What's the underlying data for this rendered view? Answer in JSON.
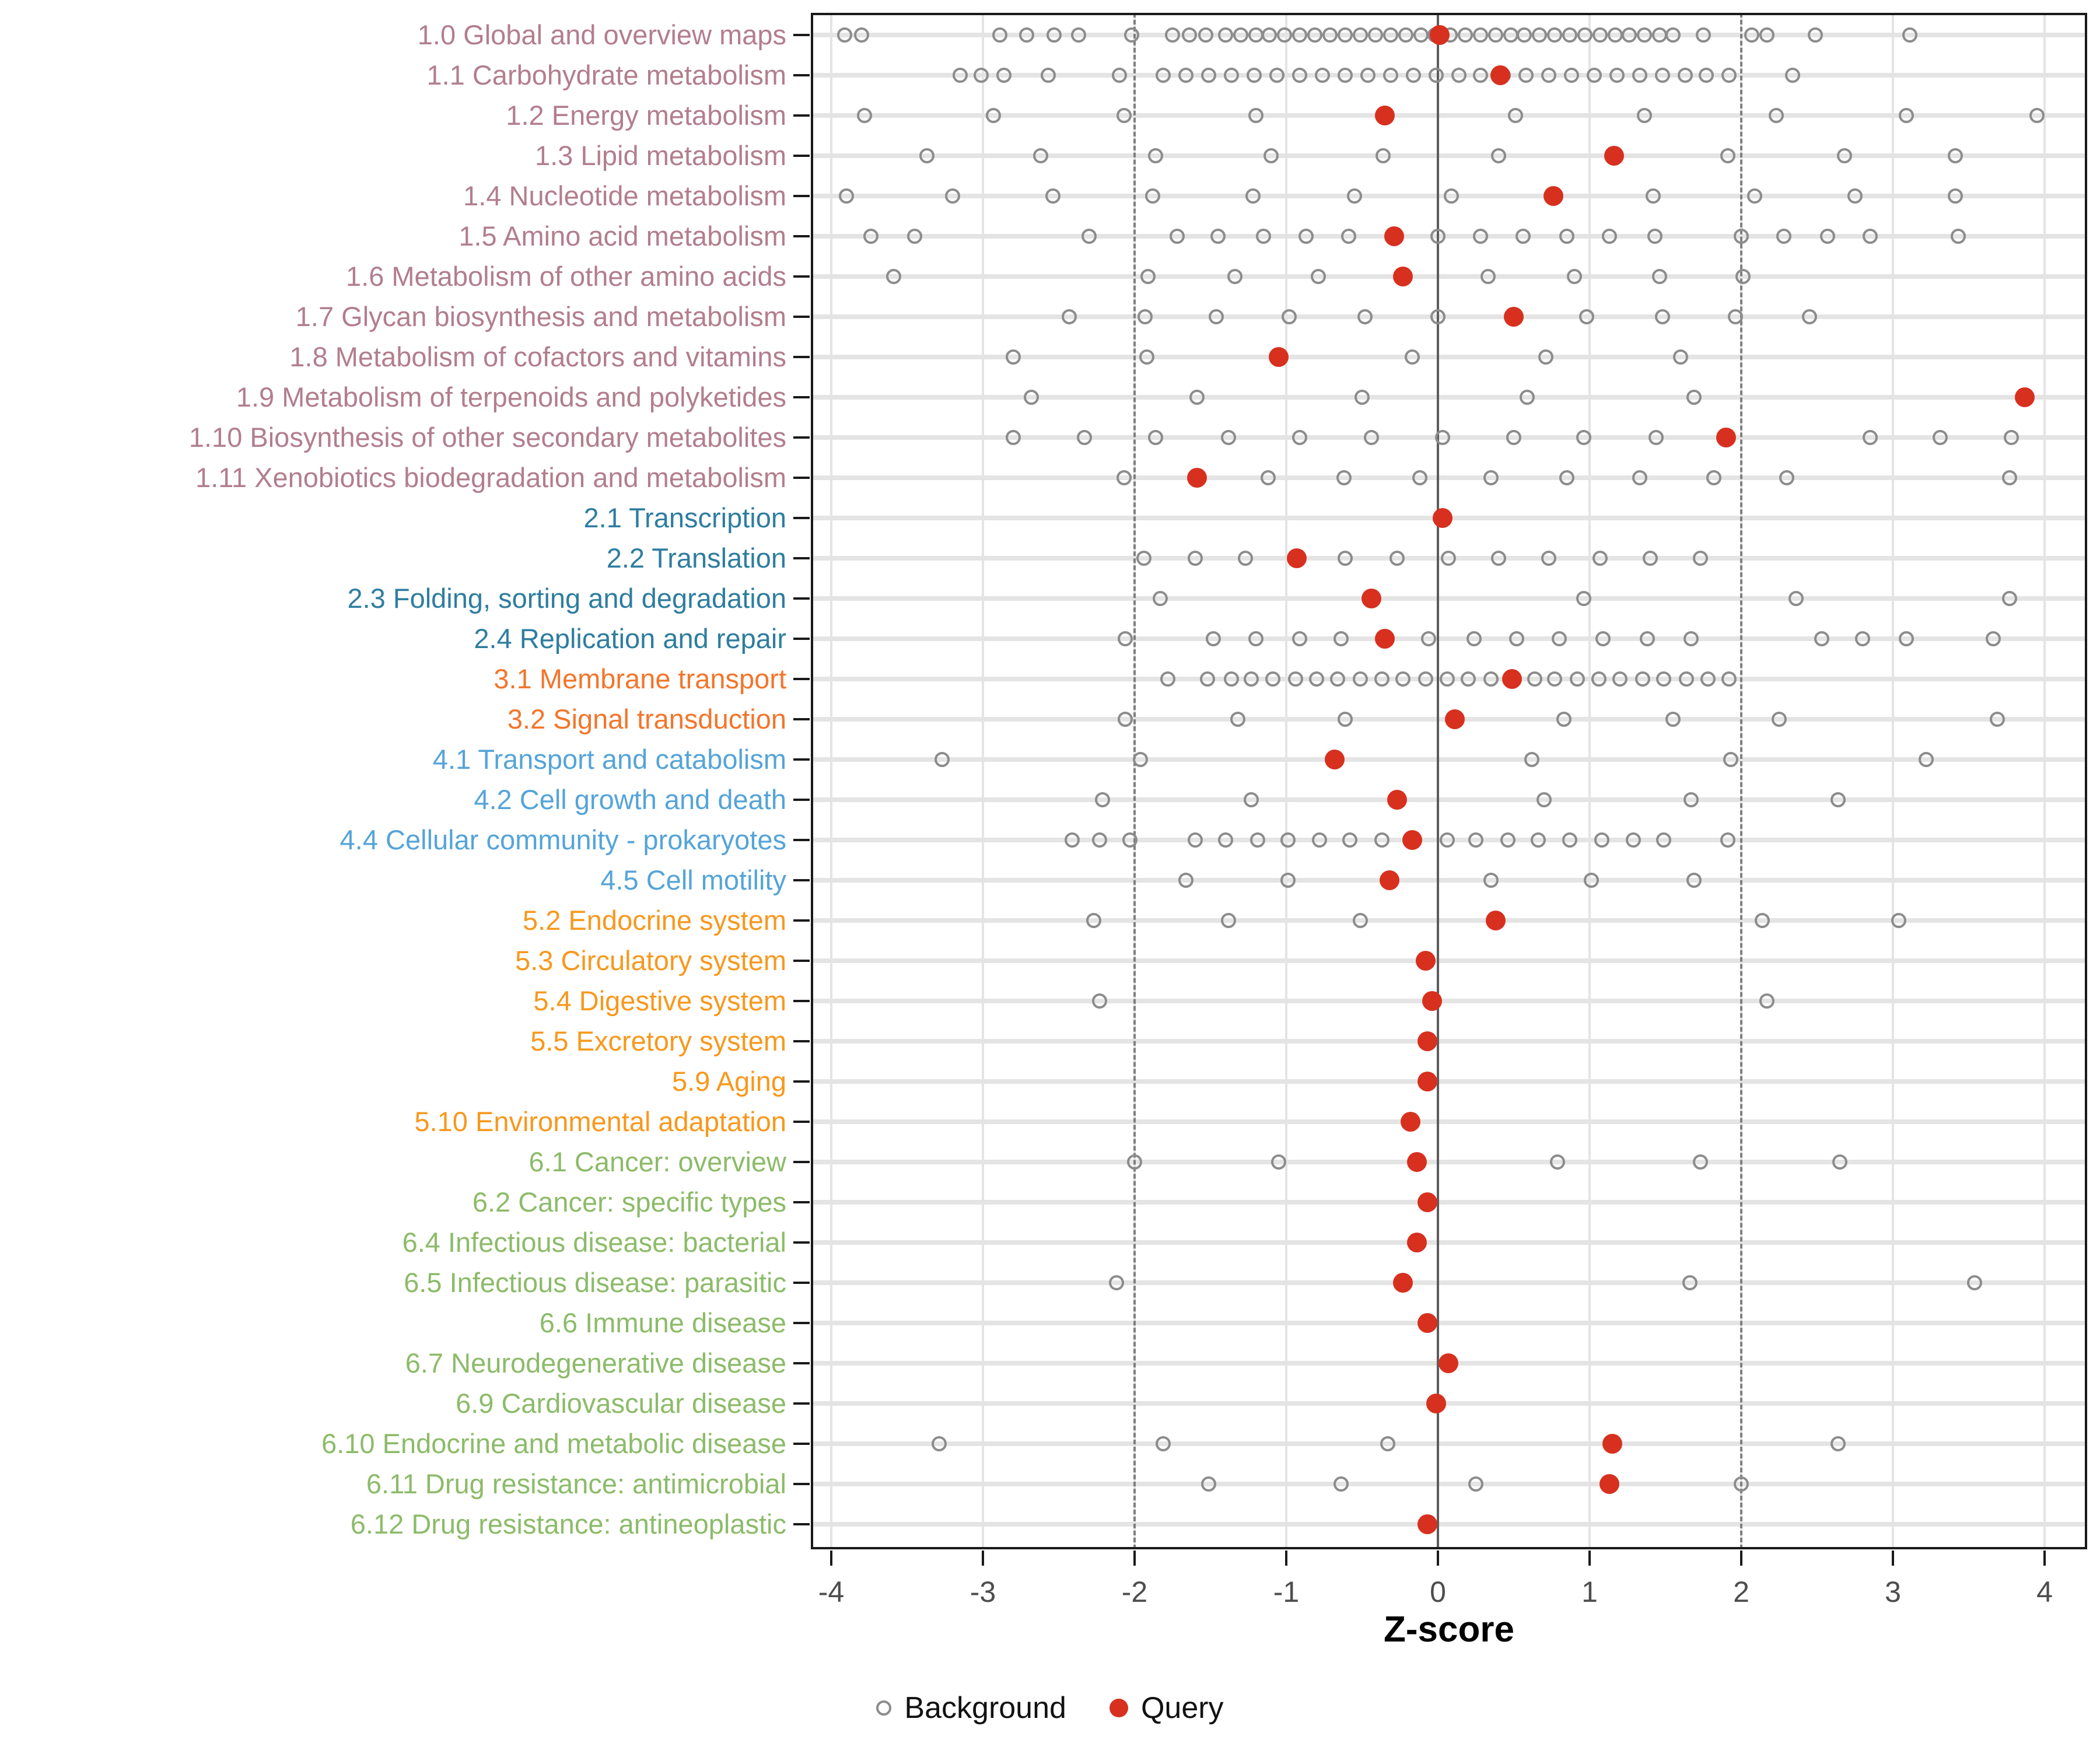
{
  "axis": {
    "xlabel": "Z-score"
  },
  "legend": {
    "background_label": "Background",
    "query_label": "Query"
  },
  "colors": {
    "query_marker": "#d7301f",
    "background_marker": "#8c8c8c",
    "gridline": "#e4e4e4",
    "dashed_reference": "#7f7f7f",
    "zero_line": "#5c5c5c",
    "panel_border": "#1a1a1a",
    "tick_label": "#4d4d4d"
  },
  "chart_data": {
    "type": "scatter",
    "title": "",
    "xlabel": "Z-score",
    "ylabel": "",
    "x_ticks": [
      -4,
      -3,
      -2,
      -1,
      0,
      1,
      2,
      3,
      4
    ],
    "xlim": [
      -4.35,
      4.35
    ],
    "grid": true,
    "legend_position": "bottom",
    "reference_lines": {
      "zero": 0,
      "dashed": [
        -2,
        2
      ]
    },
    "series_names": [
      "Background",
      "Query"
    ],
    "group_colors": {
      "1": "#b27e8e",
      "2": "#2e7da0",
      "3": "#f3752b",
      "4": "#55a4d9",
      "5": "#f8981d",
      "6": "#8cbb69"
    },
    "rows": [
      {
        "label": "1.0 Global and overview maps",
        "group": "1",
        "query": 0.01,
        "background": [
          -3.91,
          -3.8,
          -2.89,
          -2.71,
          -2.53,
          -2.37,
          -2.02,
          -1.75,
          -1.64,
          -1.53,
          -1.4,
          -1.3,
          -1.2,
          -1.11,
          -1.01,
          -0.91,
          -0.81,
          -0.71,
          -0.61,
          -0.51,
          -0.41,
          -0.31,
          -0.21,
          -0.11,
          -0.02,
          0.08,
          0.18,
          0.28,
          0.38,
          0.48,
          0.57,
          0.67,
          0.77,
          0.87,
          0.97,
          1.07,
          1.17,
          1.26,
          1.36,
          1.46,
          1.55,
          1.75,
          2.07,
          2.17,
          2.49,
          3.11
        ]
      },
      {
        "label": "1.1 Carbohydrate metabolism",
        "group": "1",
        "query": 0.41,
        "background": [
          -3.15,
          -3.01,
          -2.86,
          -2.57,
          -2.1,
          -1.81,
          -1.66,
          -1.51,
          -1.36,
          -1.21,
          -1.06,
          -0.91,
          -0.76,
          -0.61,
          -0.46,
          -0.31,
          -0.16,
          -0.01,
          0.14,
          0.28,
          0.43,
          0.58,
          0.73,
          0.88,
          1.03,
          1.18,
          1.33,
          1.48,
          1.63,
          1.77,
          1.92,
          2.34
        ]
      },
      {
        "label": "1.2 Energy metabolism",
        "group": "1",
        "query": -0.35,
        "background": [
          -3.78,
          -2.93,
          -2.07,
          -1.2,
          0.51,
          1.36,
          2.23,
          3.09,
          3.95
        ]
      },
      {
        "label": "1.3 Lipid metabolism",
        "group": "1",
        "query": 1.16,
        "background": [
          -3.37,
          -2.62,
          -1.86,
          -1.1,
          -0.36,
          0.4,
          1.91,
          2.68,
          3.41
        ]
      },
      {
        "label": "1.4 Nucleotide metabolism",
        "group": "1",
        "query": 0.76,
        "background": [
          -3.9,
          -3.2,
          -2.54,
          -1.88,
          -1.22,
          -0.55,
          0.09,
          1.42,
          2.09,
          2.75,
          3.41
        ]
      },
      {
        "label": "1.5 Amino acid metabolism",
        "group": "1",
        "query": -0.29,
        "background": [
          -3.74,
          -3.45,
          -2.3,
          -1.72,
          -1.45,
          -1.15,
          -0.87,
          -0.59,
          0.0,
          0.28,
          0.56,
          0.85,
          1.13,
          1.43,
          2.0,
          2.28,
          2.57,
          2.85,
          3.43
        ]
      },
      {
        "label": "1.6 Metabolism of other amino acids",
        "group": "1",
        "query": -0.23,
        "background": [
          -3.59,
          -1.91,
          -1.34,
          -0.79,
          0.33,
          0.9,
          1.46,
          2.01
        ]
      },
      {
        "label": "1.7 Glycan biosynthesis and metabolism",
        "group": "1",
        "query": 0.5,
        "background": [
          -2.43,
          -1.93,
          -1.46,
          -0.98,
          -0.48,
          0.0,
          0.98,
          1.48,
          1.96,
          2.45
        ]
      },
      {
        "label": "1.8 Metabolism of cofactors and vitamins",
        "group": "1",
        "query": -1.05,
        "background": [
          -2.8,
          -1.92,
          -0.17,
          0.71,
          1.6
        ]
      },
      {
        "label": "1.9 Metabolism of terpenoids and polyketides",
        "group": "1",
        "query": 3.87,
        "background": [
          -2.68,
          -1.59,
          -0.5,
          0.59,
          1.69
        ]
      },
      {
        "label": "1.10 Biosynthesis of other secondary metabolites",
        "group": "1",
        "query": 1.9,
        "background": [
          -2.8,
          -2.33,
          -1.86,
          -1.38,
          -0.91,
          -0.44,
          0.03,
          0.5,
          0.96,
          1.44,
          2.85,
          3.31,
          3.78
        ]
      },
      {
        "label": "1.11 Xenobiotics biodegradation and metabolism",
        "group": "1",
        "query": -1.59,
        "background": [
          -2.07,
          -1.12,
          -0.62,
          -0.12,
          0.35,
          0.85,
          1.33,
          1.82,
          2.3,
          3.77
        ]
      },
      {
        "label": "2.1 Transcription",
        "group": "2",
        "query": 0.03,
        "background": []
      },
      {
        "label": "2.2 Translation",
        "group": "2",
        "query": -0.93,
        "background": [
          -1.94,
          -1.6,
          -1.27,
          -0.61,
          -0.27,
          0.07,
          0.4,
          0.73,
          1.07,
          1.4,
          1.73
        ]
      },
      {
        "label": "2.3 Folding, sorting and degradation",
        "group": "2",
        "query": -0.44,
        "background": [
          -1.83,
          0.96,
          2.36,
          3.77
        ]
      },
      {
        "label": "2.4 Replication and repair",
        "group": "2",
        "query": -0.35,
        "background": [
          -2.06,
          -1.48,
          -1.2,
          -0.91,
          -0.64,
          -0.06,
          0.24,
          0.52,
          0.8,
          1.09,
          1.38,
          1.67,
          2.53,
          2.8,
          3.09,
          3.66
        ]
      },
      {
        "label": "3.1 Membrane transport",
        "group": "3",
        "query": 0.49,
        "background": [
          -1.78,
          -1.52,
          -1.36,
          -1.23,
          -1.09,
          -0.94,
          -0.8,
          -0.66,
          -0.51,
          -0.37,
          -0.23,
          -0.08,
          0.06,
          0.2,
          0.35,
          0.64,
          0.77,
          0.92,
          1.06,
          1.2,
          1.35,
          1.49,
          1.64,
          1.78,
          1.92
        ]
      },
      {
        "label": "3.2 Signal transduction",
        "group": "3",
        "query": 0.11,
        "background": [
          -2.06,
          -1.32,
          -0.61,
          0.83,
          1.55,
          2.25,
          3.69
        ]
      },
      {
        "label": "4.1 Transport and catabolism",
        "group": "4",
        "query": -0.68,
        "background": [
          -3.27,
          -1.96,
          0.62,
          1.93,
          3.22
        ]
      },
      {
        "label": "4.2 Cell growth and death",
        "group": "4",
        "query": -0.27,
        "background": [
          -2.21,
          -1.23,
          0.7,
          1.67,
          2.64
        ]
      },
      {
        "label": "4.4 Cellular community - prokaryotes",
        "group": "4",
        "query": -0.17,
        "background": [
          -2.41,
          -2.23,
          -2.03,
          -1.6,
          -1.4,
          -1.19,
          -0.99,
          -0.78,
          -0.58,
          -0.37,
          0.06,
          0.25,
          0.46,
          0.66,
          0.87,
          1.08,
          1.29,
          1.49,
          1.91
        ]
      },
      {
        "label": "4.5 Cell motility",
        "group": "4",
        "query": -0.32,
        "background": [
          -1.66,
          -0.99,
          0.35,
          1.01,
          1.69
        ]
      },
      {
        "label": "5.2 Endocrine system",
        "group": "5",
        "query": 0.38,
        "background": [
          -2.27,
          -1.38,
          -0.51,
          2.14,
          3.04
        ]
      },
      {
        "label": "5.3 Circulatory system",
        "group": "5",
        "query": -0.08,
        "background": []
      },
      {
        "label": "5.4 Digestive system",
        "group": "5",
        "query": -0.04,
        "background": [
          -2.23,
          2.17
        ]
      },
      {
        "label": "5.5 Excretory system",
        "group": "5",
        "query": -0.07,
        "background": []
      },
      {
        "label": "5.9 Aging",
        "group": "5",
        "query": -0.07,
        "background": []
      },
      {
        "label": "5.10 Environmental adaptation",
        "group": "5",
        "query": -0.18,
        "background": []
      },
      {
        "label": "6.1 Cancer: overview",
        "group": "6",
        "query": -0.14,
        "background": [
          -2.0,
          -1.05,
          0.79,
          1.73,
          2.65
        ]
      },
      {
        "label": "6.2 Cancer: specific types",
        "group": "6",
        "query": -0.07,
        "background": []
      },
      {
        "label": "6.4 Infectious disease: bacterial",
        "group": "6",
        "query": -0.14,
        "background": []
      },
      {
        "label": "6.5 Infectious disease: parasitic",
        "group": "6",
        "query": -0.23,
        "background": [
          -2.12,
          1.66,
          3.54
        ]
      },
      {
        "label": "6.6 Immune disease",
        "group": "6",
        "query": -0.07,
        "background": []
      },
      {
        "label": "6.7 Neurodegenerative disease",
        "group": "6",
        "query": 0.07,
        "background": []
      },
      {
        "label": "6.9 Cardiovascular disease",
        "group": "6",
        "query": -0.01,
        "background": []
      },
      {
        "label": "6.10 Endocrine and metabolic disease",
        "group": "6",
        "query": 1.15,
        "background": [
          -3.29,
          -1.81,
          -0.33,
          2.64
        ]
      },
      {
        "label": "6.11 Drug resistance: antimicrobial",
        "group": "6",
        "query": 1.13,
        "background": [
          -1.51,
          -0.64,
          0.25,
          2.0
        ]
      },
      {
        "label": "6.12 Drug resistance: antineoplastic",
        "group": "6",
        "query": -0.07,
        "background": []
      }
    ]
  }
}
